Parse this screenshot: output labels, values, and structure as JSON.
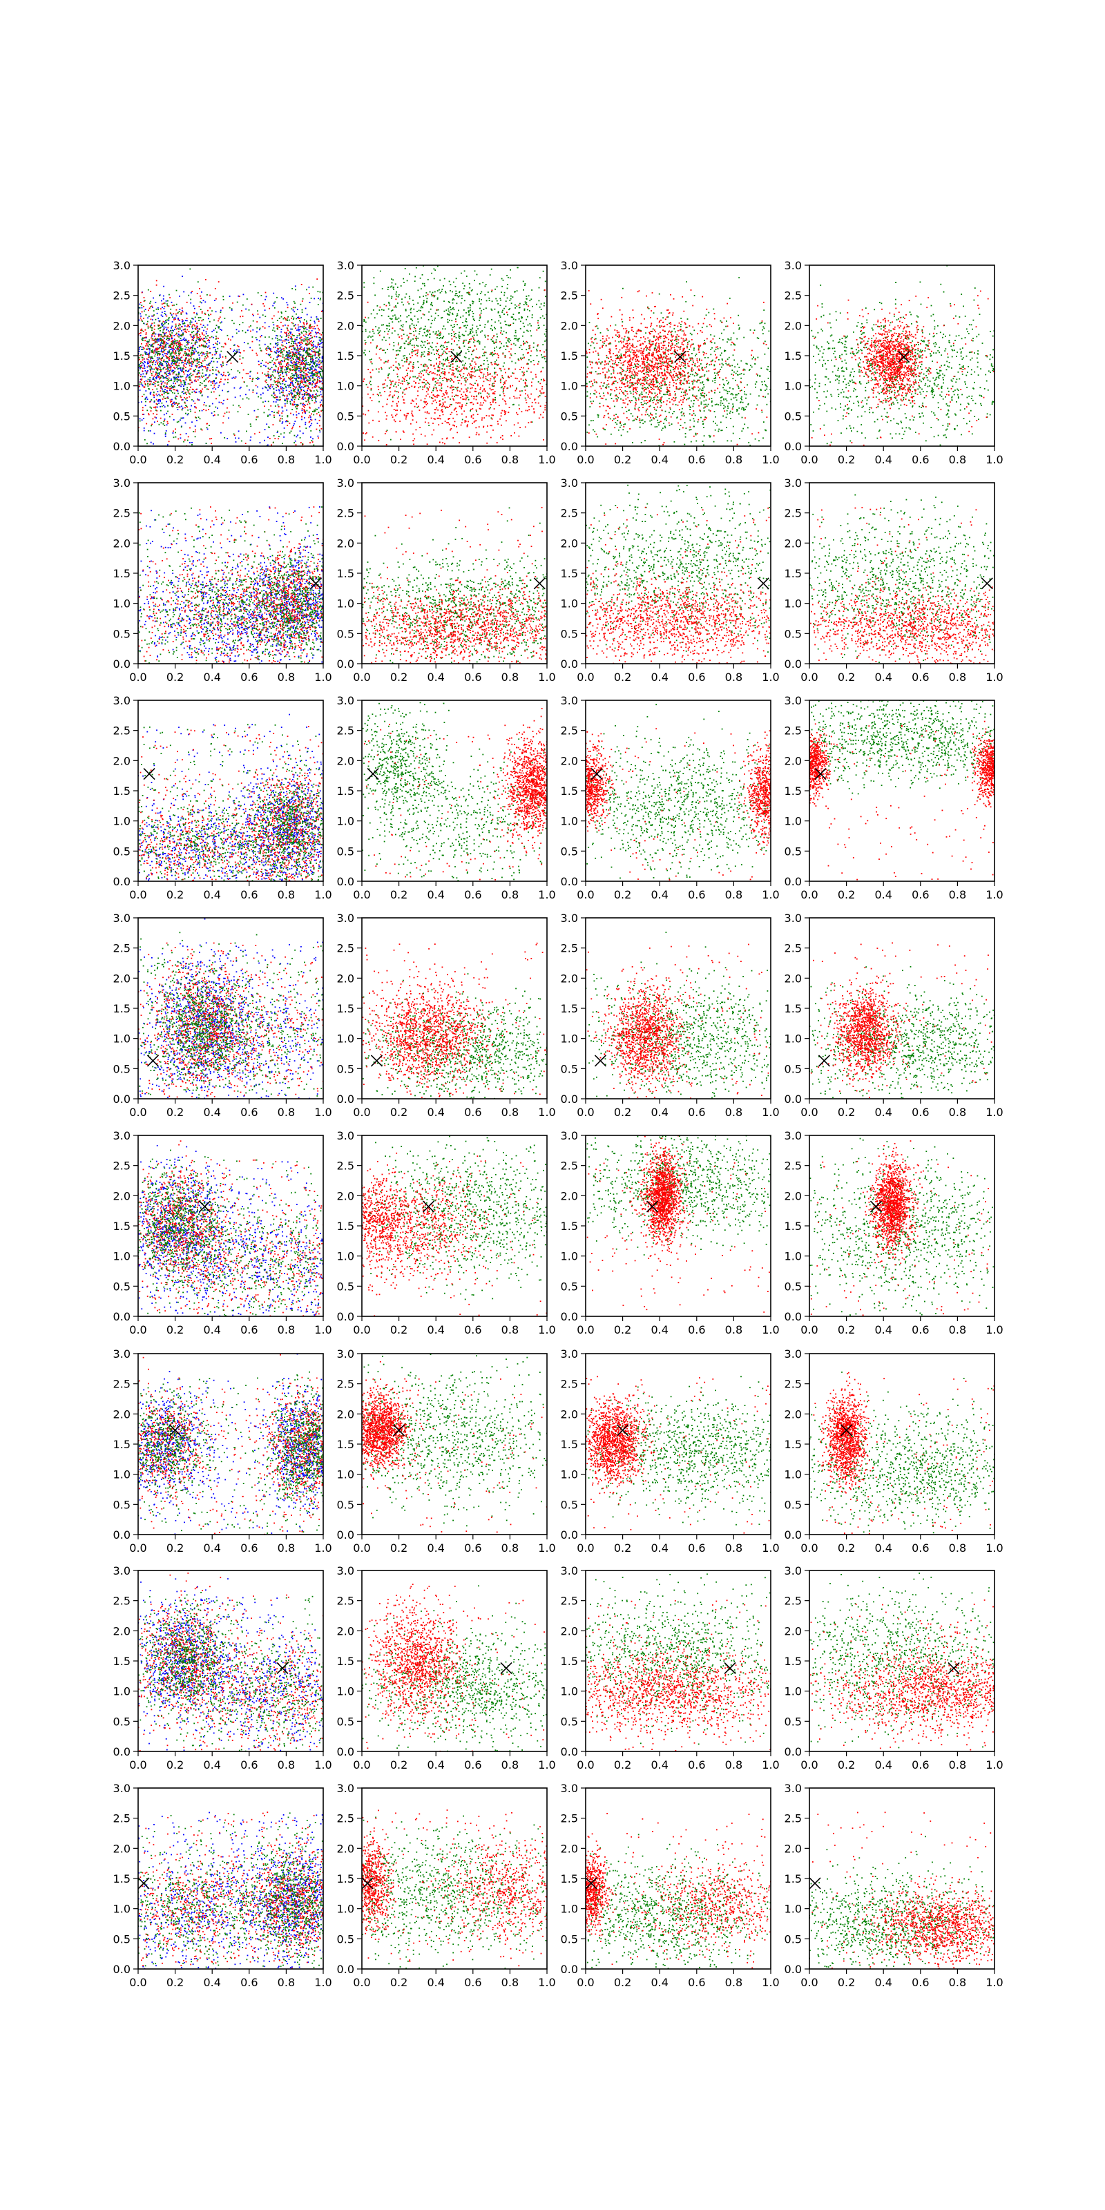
{
  "figure": {
    "layout": "grid",
    "rows": 8,
    "cols": 4,
    "background": "#ffffff",
    "colors": {
      "red": "#ff0000",
      "green": "#008000",
      "blue": "#0000ff",
      "marker": "#000000",
      "axes": "#000000"
    }
  },
  "chart_data": {
    "type": "scatter",
    "description_of_panels": "8x4 grid of scatter panels; column 1 shows red/green/blue points, columns 2-4 show red/green points; each panel marks a reference point with a black x",
    "x_range": [
      0.0,
      1.0
    ],
    "y_range": [
      0.0,
      3.0
    ],
    "xticks": [
      "0.0",
      "0.2",
      "0.4",
      "0.6",
      "0.8",
      "1.0"
    ],
    "yticks": [
      "0.0",
      "0.5",
      "1.0",
      "1.5",
      "2.0",
      "2.5",
      "3.0"
    ],
    "grid": false,
    "legend": "none",
    "series_colors": [
      "#ff0000",
      "#008000",
      "#0000ff"
    ],
    "marker_symbol": "x",
    "rows": [
      {
        "marker": [
          0.51,
          1.48
        ],
        "panels": [
          {
            "type": "rgb",
            "blobs": [
              {
                "cx": 0.18,
                "cy": 1.45,
                "sx": 0.14,
                "sy": 0.45,
                "w": 0.55
              },
              {
                "cx": 0.9,
                "cy": 1.3,
                "sx": 0.12,
                "sy": 0.45,
                "w": 0.45
              }
            ],
            "n": 3600
          },
          {
            "type": "rg",
            "red": [
              {
                "cx": 0.5,
                "cy": 0.95,
                "sx": 0.35,
                "sy": 0.45
              }
            ],
            "green": [
              {
                "cx": 0.5,
                "cy": 1.9,
                "sx": 0.35,
                "sy": 0.55
              }
            ],
            "nr": 900,
            "ng": 1100
          },
          {
            "type": "rg",
            "red": [
              {
                "cx": 0.35,
                "cy": 1.35,
                "sx": 0.16,
                "sy": 0.38
              }
            ],
            "green": [
              {
                "cx": 0.55,
                "cy": 1.0,
                "sx": 0.35,
                "sy": 0.55
              }
            ],
            "nr": 1300,
            "ng": 900
          },
          {
            "type": "rg",
            "red": [
              {
                "cx": 0.45,
                "cy": 1.4,
                "sx": 0.08,
                "sy": 0.3
              }
            ],
            "green": [
              {
                "cx": 0.5,
                "cy": 1.2,
                "sx": 0.35,
                "sy": 0.55
              }
            ],
            "nr": 1100,
            "ng": 900
          }
        ]
      },
      {
        "marker": [
          0.96,
          1.33
        ],
        "panels": [
          {
            "type": "rgb",
            "blobs": [
              {
                "cx": 0.55,
                "cy": 0.85,
                "sx": 0.3,
                "sy": 0.45,
                "w": 0.6
              },
              {
                "cx": 0.85,
                "cy": 1.0,
                "sx": 0.12,
                "sy": 0.4,
                "w": 0.4
              }
            ],
            "n": 3600
          },
          {
            "type": "rg",
            "red": [
              {
                "cx": 0.55,
                "cy": 0.6,
                "sx": 0.35,
                "sy": 0.3
              }
            ],
            "green": [
              {
                "cx": 0.6,
                "cy": 0.9,
                "sx": 0.35,
                "sy": 0.45
              }
            ],
            "nr": 1200,
            "ng": 900
          },
          {
            "type": "rg",
            "red": [
              {
                "cx": 0.45,
                "cy": 0.7,
                "sx": 0.35,
                "sy": 0.35
              }
            ],
            "green": [
              {
                "cx": 0.5,
                "cy": 1.6,
                "sx": 0.35,
                "sy": 0.6
              }
            ],
            "nr": 1200,
            "ng": 900
          },
          {
            "type": "rg",
            "red": [
              {
                "cx": 0.6,
                "cy": 0.6,
                "sx": 0.35,
                "sy": 0.3
              }
            ],
            "green": [
              {
                "cx": 0.5,
                "cy": 1.3,
                "sx": 0.35,
                "sy": 0.55
              }
            ],
            "nr": 1100,
            "ng": 900
          }
        ]
      },
      {
        "marker": [
          0.06,
          1.78
        ],
        "panels": [
          {
            "type": "rgb",
            "blobs": [
              {
                "cx": 0.82,
                "cy": 0.9,
                "sx": 0.12,
                "sy": 0.45,
                "w": 0.55
              },
              {
                "cx": 0.35,
                "cy": 0.6,
                "sx": 0.3,
                "sy": 0.4,
                "w": 0.45
              }
            ],
            "n": 3600
          },
          {
            "type": "rg",
            "red": [
              {
                "cx": 0.92,
                "cy": 1.55,
                "sx": 0.07,
                "sy": 0.4
              }
            ],
            "green": [
              {
                "cx": 0.2,
                "cy": 1.9,
                "sx": 0.12,
                "sy": 0.45
              },
              {
                "cx": 0.55,
                "cy": 1.0,
                "sx": 0.3,
                "sy": 0.5
              }
            ],
            "nr": 1100,
            "ng": 1000
          },
          {
            "type": "rg",
            "red": [
              {
                "cx": 0.03,
                "cy": 1.6,
                "sx": 0.05,
                "sy": 0.3
              },
              {
                "cx": 0.97,
                "cy": 1.45,
                "sx": 0.05,
                "sy": 0.35
              }
            ],
            "green": [
              {
                "cx": 0.5,
                "cy": 1.2,
                "sx": 0.35,
                "sy": 0.55
              }
            ],
            "nr": 1100,
            "ng": 900
          },
          {
            "type": "rg",
            "red": [
              {
                "cx": 0.02,
                "cy": 1.95,
                "sx": 0.04,
                "sy": 0.25
              },
              {
                "cx": 0.98,
                "cy": 1.85,
                "sx": 0.04,
                "sy": 0.25
              }
            ],
            "green": [
              {
                "cx": 0.5,
                "cy": 2.35,
                "sx": 0.35,
                "sy": 0.35
              }
            ],
            "nr": 1100,
            "ng": 900
          }
        ]
      },
      {
        "marker": [
          0.08,
          0.63
        ],
        "panels": [
          {
            "type": "rgb",
            "blobs": [
              {
                "cx": 0.35,
                "cy": 1.2,
                "sx": 0.13,
                "sy": 0.5,
                "w": 0.7
              },
              {
                "cx": 0.6,
                "cy": 1.0,
                "sx": 0.3,
                "sy": 0.5,
                "w": 0.3
              }
            ],
            "n": 3600
          },
          {
            "type": "rg",
            "red": [
              {
                "cx": 0.35,
                "cy": 1.05,
                "sx": 0.15,
                "sy": 0.4
              }
            ],
            "green": [
              {
                "cx": 0.6,
                "cy": 0.8,
                "sx": 0.3,
                "sy": 0.4
              }
            ],
            "nr": 1300,
            "ng": 900
          },
          {
            "type": "rg",
            "red": [
              {
                "cx": 0.32,
                "cy": 1.05,
                "sx": 0.1,
                "sy": 0.4
              }
            ],
            "green": [
              {
                "cx": 0.55,
                "cy": 1.0,
                "sx": 0.3,
                "sy": 0.5
              }
            ],
            "nr": 1200,
            "ng": 900
          },
          {
            "type": "rg",
            "red": [
              {
                "cx": 0.3,
                "cy": 1.1,
                "sx": 0.08,
                "sy": 0.35
              }
            ],
            "green": [
              {
                "cx": 0.55,
                "cy": 0.9,
                "sx": 0.3,
                "sy": 0.45
              }
            ],
            "nr": 1200,
            "ng": 900
          }
        ]
      },
      {
        "marker": [
          0.36,
          1.82
        ],
        "panels": [
          {
            "type": "rgb",
            "blobs": [
              {
                "cx": 0.22,
                "cy": 1.5,
                "sx": 0.13,
                "sy": 0.45,
                "w": 0.65
              },
              {
                "cx": 0.7,
                "cy": 0.9,
                "sx": 0.3,
                "sy": 0.45,
                "w": 0.35
              }
            ],
            "n": 3600
          },
          {
            "type": "rg",
            "red": [
              {
                "cx": 0.08,
                "cy": 1.6,
                "sx": 0.08,
                "sy": 0.35
              },
              {
                "cx": 0.35,
                "cy": 1.5,
                "sx": 0.15,
                "sy": 0.4
              }
            ],
            "green": [
              {
                "cx": 0.6,
                "cy": 1.7,
                "sx": 0.3,
                "sy": 0.55
              }
            ],
            "nr": 1100,
            "ng": 900
          },
          {
            "type": "rg",
            "red": [
              {
                "cx": 0.42,
                "cy": 1.95,
                "sx": 0.05,
                "sy": 0.35
              }
            ],
            "green": [
              {
                "cx": 0.55,
                "cy": 2.2,
                "sx": 0.3,
                "sy": 0.45
              }
            ],
            "nr": 1400,
            "ng": 900
          },
          {
            "type": "rg",
            "red": [
              {
                "cx": 0.45,
                "cy": 1.85,
                "sx": 0.05,
                "sy": 0.35
              }
            ],
            "green": [
              {
                "cx": 0.5,
                "cy": 1.4,
                "sx": 0.3,
                "sy": 0.6
              }
            ],
            "nr": 1400,
            "ng": 900
          }
        ]
      },
      {
        "marker": [
          0.2,
          1.73
        ],
        "panels": [
          {
            "type": "rgb",
            "blobs": [
              {
                "cx": 0.9,
                "cy": 1.45,
                "sx": 0.1,
                "sy": 0.45,
                "w": 0.55
              },
              {
                "cx": 0.15,
                "cy": 1.5,
                "sx": 0.12,
                "sy": 0.4,
                "w": 0.45
              }
            ],
            "n": 3600
          },
          {
            "type": "rg",
            "red": [
              {
                "cx": 0.1,
                "cy": 1.75,
                "sx": 0.07,
                "sy": 0.3
              }
            ],
            "green": [
              {
                "cx": 0.45,
                "cy": 1.6,
                "sx": 0.3,
                "sy": 0.55
              }
            ],
            "nr": 1300,
            "ng": 900
          },
          {
            "type": "rg",
            "red": [
              {
                "cx": 0.15,
                "cy": 1.55,
                "sx": 0.08,
                "sy": 0.33
              }
            ],
            "green": [
              {
                "cx": 0.6,
                "cy": 1.35,
                "sx": 0.3,
                "sy": 0.45
              }
            ],
            "nr": 1300,
            "ng": 900
          },
          {
            "type": "rg",
            "red": [
              {
                "cx": 0.2,
                "cy": 1.6,
                "sx": 0.05,
                "sy": 0.35
              }
            ],
            "green": [
              {
                "cx": 0.55,
                "cy": 1.1,
                "sx": 0.3,
                "sy": 0.5
              }
            ],
            "nr": 1300,
            "ng": 900
          }
        ]
      },
      {
        "marker": [
          0.78,
          1.38
        ],
        "panels": [
          {
            "type": "rgb",
            "blobs": [
              {
                "cx": 0.25,
                "cy": 1.55,
                "sx": 0.12,
                "sy": 0.45,
                "w": 0.6
              },
              {
                "cx": 0.75,
                "cy": 1.0,
                "sx": 0.25,
                "sy": 0.45,
                "w": 0.4
              }
            ],
            "n": 3600
          },
          {
            "type": "rg",
            "red": [
              {
                "cx": 0.3,
                "cy": 1.45,
                "sx": 0.12,
                "sy": 0.45
              }
            ],
            "green": [
              {
                "cx": 0.6,
                "cy": 1.1,
                "sx": 0.3,
                "sy": 0.45
              }
            ],
            "nr": 1200,
            "ng": 900
          },
          {
            "type": "rg",
            "red": [
              {
                "cx": 0.4,
                "cy": 1.0,
                "sx": 0.35,
                "sy": 0.35
              }
            ],
            "green": [
              {
                "cx": 0.5,
                "cy": 1.6,
                "sx": 0.35,
                "sy": 0.55
              }
            ],
            "nr": 1200,
            "ng": 900
          },
          {
            "type": "rg",
            "red": [
              {
                "cx": 0.7,
                "cy": 1.0,
                "sx": 0.3,
                "sy": 0.35
              }
            ],
            "green": [
              {
                "cx": 0.45,
                "cy": 1.5,
                "sx": 0.35,
                "sy": 0.55
              }
            ],
            "nr": 1200,
            "ng": 900
          }
        ]
      },
      {
        "marker": [
          0.03,
          1.42
        ],
        "panels": [
          {
            "type": "rgb",
            "blobs": [
              {
                "cx": 0.85,
                "cy": 1.1,
                "sx": 0.13,
                "sy": 0.45,
                "w": 0.6
              },
              {
                "cx": 0.3,
                "cy": 1.0,
                "sx": 0.25,
                "sy": 0.45,
                "w": 0.4
              }
            ],
            "n": 3600
          },
          {
            "type": "rg",
            "red": [
              {
                "cx": 0.8,
                "cy": 1.3,
                "sx": 0.18,
                "sy": 0.4
              },
              {
                "cx": 0.05,
                "cy": 1.4,
                "sx": 0.05,
                "sy": 0.35
              }
            ],
            "green": [
              {
                "cx": 0.45,
                "cy": 1.2,
                "sx": 0.35,
                "sy": 0.5
              }
            ],
            "nr": 1200,
            "ng": 900
          },
          {
            "type": "rg",
            "red": [
              {
                "cx": 0.75,
                "cy": 1.05,
                "sx": 0.2,
                "sy": 0.35
              },
              {
                "cx": 0.03,
                "cy": 1.3,
                "sx": 0.04,
                "sy": 0.3
              }
            ],
            "green": [
              {
                "cx": 0.4,
                "cy": 0.9,
                "sx": 0.3,
                "sy": 0.45
              }
            ],
            "nr": 1200,
            "ng": 900
          },
          {
            "type": "rg",
            "red": [
              {
                "cx": 0.75,
                "cy": 0.7,
                "sx": 0.2,
                "sy": 0.3
              }
            ],
            "green": [
              {
                "cx": 0.4,
                "cy": 0.75,
                "sx": 0.3,
                "sy": 0.4
              }
            ],
            "nr": 1100,
            "ng": 900
          }
        ]
      }
    ]
  }
}
